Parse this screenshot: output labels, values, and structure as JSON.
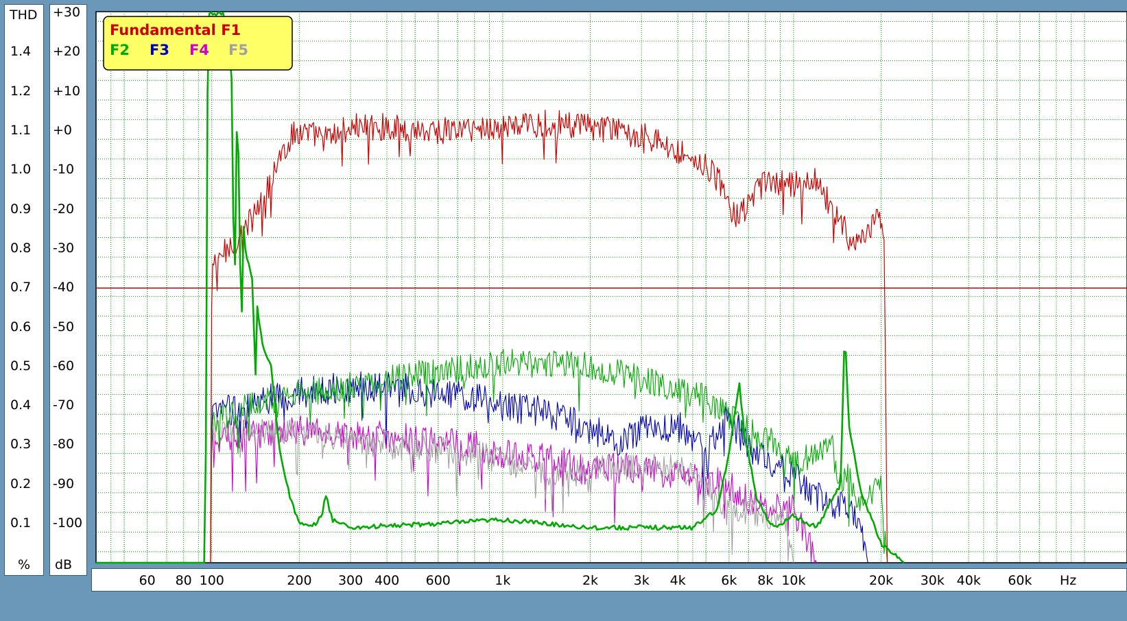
{
  "chart_data": {
    "type": "line",
    "legend": {
      "title": "Fundamental F1",
      "items": [
        "F2",
        "F3",
        "F4",
        "F5"
      ],
      "placement": "top-left"
    },
    "thd_axis": {
      "header": "THD",
      "unit": "%",
      "tick_labels": [
        "1.4",
        "1.2",
        "1.1",
        "1.0",
        "0.9",
        "0.8",
        "0.7",
        "0.6",
        "0.5",
        "0.4",
        "0.3",
        "0.2",
        "0.1"
      ]
    },
    "db_axis": {
      "unit": "dB",
      "tick_labels": [
        "+30",
        "+20",
        "+10",
        "+0",
        "-10",
        "-20",
        "-30",
        "-40",
        "-50",
        "-60",
        "-70",
        "-80",
        "-90",
        "-100"
      ],
      "tick_values": [
        30,
        20,
        10,
        0,
        -10,
        -20,
        -30,
        -40,
        -50,
        -60,
        -70,
        -80,
        -90,
        -100
      ],
      "range": [
        -110,
        30
      ]
    },
    "x_axis": {
      "unit": "Hz",
      "scale": "log",
      "range": [
        40,
        140000
      ],
      "tick_labels": [
        "60",
        "80",
        "100",
        "200",
        "300",
        "400",
        "600",
        "1k",
        "2k",
        "3k",
        "4k",
        "6k",
        "8k",
        "10k",
        "20k",
        "30k",
        "40k",
        "60k"
      ],
      "tick_values": [
        60,
        80,
        100,
        200,
        300,
        400,
        600,
        1000,
        2000,
        3000,
        4000,
        6000,
        8000,
        10000,
        20000,
        30000,
        40000,
        60000
      ]
    },
    "grid": true,
    "threshold_line_db": -40,
    "series": [
      {
        "name": "Fundamental F1",
        "color": "#cc0000",
        "width": 1.2,
        "noise": 3.5,
        "points": [
          [
            99,
            -110
          ],
          [
            100,
            -35
          ],
          [
            110,
            -31
          ],
          [
            130,
            -25
          ],
          [
            150,
            -18
          ],
          [
            170,
            -7
          ],
          [
            190,
            -1
          ],
          [
            200,
            0
          ],
          [
            250,
            -2
          ],
          [
            300,
            1
          ],
          [
            400,
            1
          ],
          [
            600,
            0
          ],
          [
            1000,
            1
          ],
          [
            1500,
            2
          ],
          [
            2000,
            1
          ],
          [
            3000,
            -1
          ],
          [
            4000,
            -5
          ],
          [
            4800,
            -8
          ],
          [
            5600,
            -13
          ],
          [
            6000,
            -20
          ],
          [
            6500,
            -22
          ],
          [
            8000,
            -13
          ],
          [
            10000,
            -14
          ],
          [
            12000,
            -12
          ],
          [
            14000,
            -22
          ],
          [
            16000,
            -28
          ],
          [
            18000,
            -27
          ],
          [
            19500,
            -22
          ],
          [
            20500,
            -30
          ],
          [
            21000,
            -110
          ]
        ]
      },
      {
        "name": "F2",
        "color": "#00aa00",
        "width": 1.1,
        "noise": 3.5,
        "points": [
          [
            99,
            -110
          ],
          [
            100,
            -75
          ],
          [
            130,
            -70
          ],
          [
            200,
            -67
          ],
          [
            300,
            -65
          ],
          [
            500,
            -62
          ],
          [
            800,
            -60
          ],
          [
            1000,
            -59
          ],
          [
            1500,
            -59
          ],
          [
            2000,
            -60
          ],
          [
            3000,
            -63
          ],
          [
            4000,
            -66
          ],
          [
            5000,
            -68
          ],
          [
            7000,
            -76
          ],
          [
            9000,
            -80
          ],
          [
            10000,
            -85
          ],
          [
            12000,
            -82
          ],
          [
            13500,
            -78
          ],
          [
            14200,
            -90
          ],
          [
            15500,
            -88
          ],
          [
            17000,
            -95
          ],
          [
            20000,
            -90
          ],
          [
            21000,
            -110
          ]
        ]
      },
      {
        "name": "F2",
        "color": "#00aa00",
        "width": 2.6,
        "noise": 0.6,
        "points": [
          [
            40,
            -110
          ],
          [
            95,
            -110
          ],
          [
            97,
            30
          ],
          [
            110,
            30
          ],
          [
            115,
            20
          ],
          [
            125,
            -10
          ],
          [
            130,
            -30
          ],
          [
            140,
            -40
          ],
          [
            150,
            -55
          ],
          [
            160,
            -60
          ],
          [
            170,
            -80
          ],
          [
            185,
            -93
          ],
          [
            200,
            -100
          ],
          [
            220,
            -101
          ],
          [
            240,
            -98
          ],
          [
            245,
            -92
          ],
          [
            260,
            -99
          ],
          [
            300,
            -101
          ],
          [
            600,
            -100
          ],
          [
            1000,
            -99
          ],
          [
            2000,
            -101
          ],
          [
            3000,
            -101
          ],
          [
            4500,
            -101
          ],
          [
            5500,
            -96
          ],
          [
            6000,
            -82
          ],
          [
            6500,
            -64
          ],
          [
            6800,
            -78
          ],
          [
            7500,
            -94
          ],
          [
            8500,
            -101
          ],
          [
            10000,
            -98
          ],
          [
            12000,
            -101
          ],
          [
            14500,
            -90
          ],
          [
            15000,
            -50
          ],
          [
            15500,
            -75
          ],
          [
            17000,
            -92
          ],
          [
            20000,
            -105
          ],
          [
            24000,
            -110
          ]
        ],
        "spikes": [
          [
            118,
            -22
          ],
          [
            125,
            -34
          ],
          [
            140,
            -50
          ]
        ]
      },
      {
        "name": "F3",
        "color": "#0000b4",
        "width": 1.1,
        "noise": 4.0,
        "points": [
          [
            99,
            -110
          ],
          [
            100,
            -72
          ],
          [
            150,
            -69
          ],
          [
            200,
            -66
          ],
          [
            400,
            -65
          ],
          [
            800,
            -68
          ],
          [
            1000,
            -70
          ],
          [
            1500,
            -72
          ],
          [
            2000,
            -76
          ],
          [
            2500,
            -79
          ],
          [
            3000,
            -76
          ],
          [
            4000,
            -75
          ],
          [
            5000,
            -82
          ],
          [
            6000,
            -72
          ],
          [
            7000,
            -80
          ],
          [
            8000,
            -84
          ],
          [
            10000,
            -88
          ],
          [
            12000,
            -93
          ],
          [
            15000,
            -96
          ],
          [
            17000,
            -99
          ],
          [
            18000,
            -110
          ]
        ]
      },
      {
        "name": "F4",
        "color": "#cc00cc",
        "width": 1.1,
        "noise": 4.0,
        "points": [
          [
            99,
            -110
          ],
          [
            100,
            -78
          ],
          [
            200,
            -76
          ],
          [
            400,
            -78
          ],
          [
            800,
            -80
          ],
          [
            1000,
            -82
          ],
          [
            1500,
            -84
          ],
          [
            2000,
            -86
          ],
          [
            3000,
            -86
          ],
          [
            4000,
            -88
          ],
          [
            5000,
            -89
          ],
          [
            6000,
            -90
          ],
          [
            7000,
            -94
          ],
          [
            8000,
            -96
          ],
          [
            10000,
            -96
          ],
          [
            12000,
            -110
          ]
        ]
      },
      {
        "name": "F5",
        "color": "#a0a0a0",
        "width": 1.1,
        "noise": 3.5,
        "points": [
          [
            99,
            -110
          ],
          [
            100,
            -76
          ],
          [
            200,
            -77
          ],
          [
            400,
            -80
          ],
          [
            800,
            -82
          ],
          [
            1000,
            -84
          ],
          [
            1500,
            -87
          ],
          [
            2000,
            -86
          ],
          [
            3000,
            -85
          ],
          [
            4000,
            -86
          ],
          [
            5000,
            -90
          ],
          [
            6000,
            -96
          ],
          [
            8000,
            -98
          ],
          [
            9500,
            -99
          ],
          [
            10000,
            -110
          ]
        ]
      }
    ]
  }
}
